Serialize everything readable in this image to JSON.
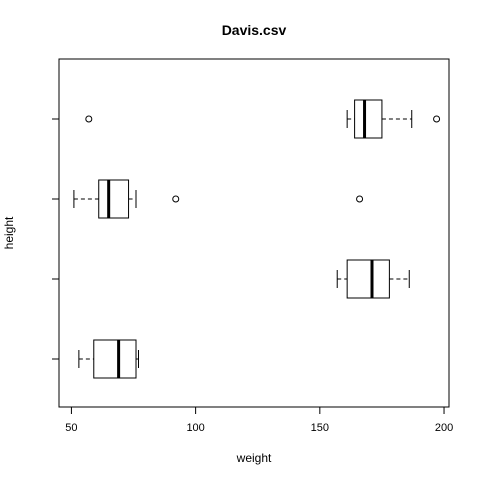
{
  "chart_data": {
    "type": "boxplot",
    "title": "Davis.csv",
    "xlabel": "weight",
    "ylabel": "height",
    "xlim": [
      45,
      202
    ],
    "xticks": [
      50,
      100,
      150,
      200
    ],
    "orientation": "horizontal",
    "grid": false,
    "legend": "none",
    "boxes": [
      {
        "whisker_low": 53,
        "q1": 59,
        "median": 69,
        "q3": 76,
        "whisker_high": 77,
        "outliers": []
      },
      {
        "whisker_low": 157,
        "q1": 161,
        "median": 171,
        "q3": 178,
        "whisker_high": 186,
        "outliers": []
      },
      {
        "whisker_low": 51,
        "q1": 61,
        "median": 65,
        "q3": 73,
        "whisker_high": 76,
        "outliers": [
          92,
          166
        ]
      },
      {
        "whisker_low": 161,
        "q1": 164,
        "median": 168,
        "q3": 175,
        "whisker_high": 187,
        "outliers": [
          57,
          197
        ]
      }
    ]
  }
}
